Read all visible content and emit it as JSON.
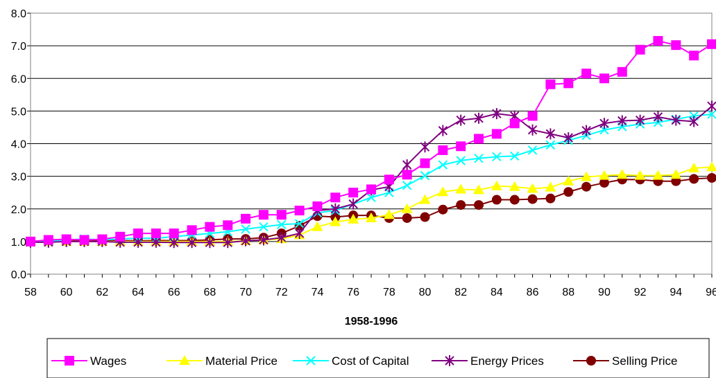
{
  "chart_data": {
    "type": "line",
    "title": "",
    "xlabel": "1958-1996",
    "ylabel": "",
    "x": [
      58,
      59,
      60,
      61,
      62,
      63,
      64,
      65,
      66,
      67,
      68,
      69,
      70,
      71,
      72,
      73,
      74,
      75,
      76,
      77,
      78,
      79,
      80,
      81,
      82,
      83,
      84,
      85,
      86,
      87,
      88,
      89,
      90,
      91,
      92,
      93,
      94,
      95,
      96
    ],
    "x_tick_labels": [
      "58",
      "60",
      "62",
      "64",
      "66",
      "68",
      "70",
      "72",
      "74",
      "76",
      "78",
      "80",
      "82",
      "84",
      "86",
      "88",
      "90",
      "92",
      "94",
      "96"
    ],
    "ylim": [
      0,
      8
    ],
    "y_ticks": [
      "0.0",
      "1.0",
      "2.0",
      "3.0",
      "4.0",
      "5.0",
      "6.0",
      "7.0",
      "8.0"
    ],
    "grid": "horizontal",
    "legend_position": "bottom",
    "series": [
      {
        "name": "Wages",
        "color": "#ff00ff",
        "marker": "square",
        "values": [
          1.0,
          1.05,
          1.07,
          1.05,
          1.07,
          1.15,
          1.25,
          1.25,
          1.25,
          1.35,
          1.45,
          1.5,
          1.7,
          1.82,
          1.82,
          1.95,
          2.08,
          2.35,
          2.5,
          2.6,
          2.9,
          3.05,
          3.4,
          3.8,
          3.92,
          4.15,
          4.3,
          4.62,
          4.85,
          5.82,
          5.85,
          6.15,
          6.0,
          6.2,
          6.88,
          7.15,
          7.02,
          6.7,
          7.05
        ]
      },
      {
        "name": "Material Price",
        "color": "#ffff00",
        "marker": "triangle",
        "values": [
          1.0,
          1.0,
          1.0,
          1.0,
          1.0,
          1.0,
          1.0,
          1.0,
          1.0,
          1.0,
          1.0,
          1.0,
          1.02,
          1.05,
          1.08,
          1.2,
          1.45,
          1.6,
          1.68,
          1.72,
          1.82,
          2.0,
          2.28,
          2.52,
          2.6,
          2.58,
          2.7,
          2.68,
          2.62,
          2.66,
          2.85,
          2.98,
          3.02,
          3.05,
          3.02,
          3.02,
          3.05,
          3.25,
          3.28
        ]
      },
      {
        "name": "Cost of Capital",
        "color": "#00ffff",
        "marker": "x",
        "values": [
          1.0,
          1.0,
          1.05,
          1.08,
          1.05,
          1.08,
          1.1,
          1.1,
          1.15,
          1.2,
          1.25,
          1.3,
          1.38,
          1.45,
          1.52,
          1.55,
          1.88,
          1.95,
          2.15,
          2.35,
          2.5,
          2.72,
          3.02,
          3.35,
          3.48,
          3.55,
          3.6,
          3.62,
          3.8,
          3.96,
          4.1,
          4.25,
          4.42,
          4.52,
          4.6,
          4.65,
          4.75,
          4.85,
          4.9
        ]
      },
      {
        "name": "Energy Prices",
        "color": "#800080",
        "marker": "asterisk",
        "values": [
          0.98,
          0.98,
          1.0,
          1.0,
          1.0,
          0.98,
          0.98,
          0.98,
          0.97,
          0.97,
          0.97,
          0.97,
          1.02,
          1.05,
          1.12,
          1.25,
          1.95,
          2.0,
          2.15,
          2.58,
          2.68,
          3.35,
          3.9,
          4.4,
          4.72,
          4.78,
          4.92,
          4.85,
          4.42,
          4.3,
          4.18,
          4.4,
          4.62,
          4.7,
          4.72,
          4.82,
          4.72,
          4.68,
          5.15
        ]
      },
      {
        "name": "Selling Price",
        "color": "#800000",
        "marker": "circle",
        "values": [
          1.0,
          1.03,
          1.05,
          1.03,
          1.03,
          1.03,
          1.02,
          1.03,
          1.03,
          1.03,
          1.05,
          1.08,
          1.08,
          1.12,
          1.25,
          1.48,
          1.78,
          1.75,
          1.8,
          1.8,
          1.72,
          1.72,
          1.75,
          1.98,
          2.12,
          2.12,
          2.28,
          2.28,
          2.3,
          2.32,
          2.52,
          2.68,
          2.8,
          2.9,
          2.9,
          2.85,
          2.85,
          2.92,
          2.95
        ]
      }
    ]
  }
}
